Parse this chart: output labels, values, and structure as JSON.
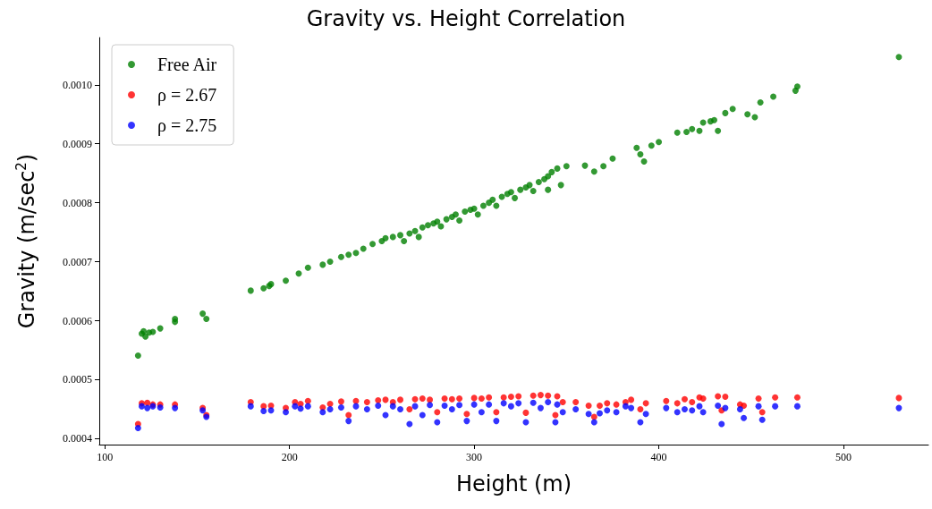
{
  "chart_data": {
    "type": "scatter",
    "title": "Gravity vs. Height Correlation",
    "xlabel": "Height (m)",
    "ylabel": "Gravity (m/sec$^{2}$)",
    "xlim": [
      97,
      546
    ],
    "xticks": [
      100,
      200,
      300,
      400,
      500
    ],
    "ylim": [
      0.00039,
      0.00108
    ],
    "yticks": [
      {
        "value": 0.0004,
        "label": "0.0004"
      },
      {
        "value": 0.0005,
        "label": "0.0005"
      },
      {
        "value": 0.0006,
        "label": "0.0006"
      },
      {
        "value": 0.0007,
        "label": "0.0007"
      },
      {
        "value": 0.0008,
        "label": "0.0008"
      },
      {
        "value": 0.0009,
        "label": "0.0009"
      },
      {
        "value": 0.001,
        "label": "0.0010"
      }
    ],
    "grid": false,
    "legend": "top left",
    "marker": "circle",
    "series": [
      {
        "name": "Free Air",
        "color": "#008000",
        "x": [
          118,
          120,
          121,
          122,
          124,
          126,
          130,
          138,
          138,
          153,
          155,
          179,
          186,
          189,
          190,
          198,
          205,
          210,
          218,
          222,
          228,
          232,
          236,
          240,
          245,
          250,
          252,
          256,
          260,
          262,
          265,
          268,
          270,
          272,
          275,
          278,
          280,
          282,
          285,
          288,
          290,
          292,
          295,
          298,
          300,
          302,
          305,
          308,
          310,
          312,
          315,
          318,
          320,
          322,
          325,
          328,
          330,
          332,
          335,
          338,
          340,
          342,
          345,
          340,
          347,
          350,
          360,
          365,
          370,
          375,
          388,
          390,
          392,
          396,
          400,
          410,
          415,
          418,
          422,
          424,
          428,
          430,
          432,
          436,
          440,
          448,
          452,
          455,
          462,
          474,
          475,
          530
        ],
        "values": [
          0.000541,
          0.000578,
          0.000582,
          0.000573,
          0.00058,
          0.000581,
          0.000587,
          0.000598,
          0.000603,
          0.000612,
          0.000603,
          0.000651,
          0.000655,
          0.000659,
          0.000662,
          0.000668,
          0.00068,
          0.00069,
          0.000695,
          0.0007,
          0.000708,
          0.000712,
          0.000715,
          0.000722,
          0.00073,
          0.000735,
          0.00074,
          0.000742,
          0.000745,
          0.000735,
          0.000748,
          0.000752,
          0.000742,
          0.000758,
          0.000762,
          0.000765,
          0.000768,
          0.00076,
          0.000772,
          0.000776,
          0.00078,
          0.00077,
          0.000785,
          0.000788,
          0.00079,
          0.00078,
          0.000795,
          0.0008,
          0.000805,
          0.000795,
          0.00081,
          0.000815,
          0.000818,
          0.000808,
          0.000822,
          0.000826,
          0.00083,
          0.00082,
          0.000835,
          0.00084,
          0.000845,
          0.000852,
          0.000858,
          0.000822,
          0.00083,
          0.000862,
          0.000863,
          0.000853,
          0.000862,
          0.000875,
          0.000893,
          0.000882,
          0.00087,
          0.000897,
          0.000903,
          0.000919,
          0.00092,
          0.000925,
          0.000922,
          0.000936,
          0.000938,
          0.00094,
          0.000922,
          0.000952,
          0.000959,
          0.00095,
          0.000945,
          0.00097,
          0.00098,
          0.00099,
          0.000997,
          0.001047
        ]
      },
      {
        "name": "ρ = 2.67",
        "color": "#ff0000",
        "x": [
          118,
          120,
          123,
          126,
          130,
          138,
          153,
          155,
          179,
          186,
          190,
          198,
          203,
          206,
          210,
          218,
          222,
          228,
          232,
          236,
          242,
          248,
          252,
          256,
          260,
          265,
          268,
          272,
          276,
          280,
          284,
          288,
          292,
          296,
          300,
          304,
          308,
          312,
          316,
          320,
          324,
          328,
          332,
          336,
          340,
          344,
          345,
          348,
          355,
          362,
          365,
          368,
          372,
          377,
          382,
          385,
          390,
          393,
          404,
          410,
          414,
          418,
          422,
          424,
          432,
          434,
          436,
          444,
          446,
          454,
          456,
          463,
          475,
          530
        ],
        "values": [
          0.000425,
          0.00046,
          0.000461,
          0.000458,
          0.000458,
          0.000458,
          0.000452,
          0.00044,
          0.000462,
          0.000455,
          0.000456,
          0.000452,
          0.000462,
          0.000459,
          0.000464,
          0.000453,
          0.000459,
          0.000463,
          0.00044,
          0.000464,
          0.000462,
          0.000465,
          0.000466,
          0.000462,
          0.000466,
          0.00045,
          0.000467,
          0.000468,
          0.000466,
          0.000445,
          0.000468,
          0.000467,
          0.000468,
          0.000442,
          0.000469,
          0.000468,
          0.00047,
          0.000445,
          0.00047,
          0.000471,
          0.000472,
          0.000444,
          0.000473,
          0.000474,
          0.000473,
          0.00044,
          0.000472,
          0.000462,
          0.000462,
          0.000456,
          0.000437,
          0.000456,
          0.00046,
          0.000458,
          0.000462,
          0.000466,
          0.00045,
          0.00046,
          0.000464,
          0.00046,
          0.000467,
          0.000462,
          0.00047,
          0.000468,
          0.000472,
          0.000448,
          0.000471,
          0.000458,
          0.000456,
          0.000468,
          0.000445,
          0.00047,
          0.00047,
          0.000469
        ]
      },
      {
        "name": "ρ = 2.75",
        "color": "#0000ff",
        "x": [
          118,
          120,
          123,
          126,
          130,
          138,
          153,
          155,
          179,
          186,
          190,
          198,
          203,
          206,
          210,
          218,
          222,
          228,
          232,
          236,
          242,
          248,
          252,
          256,
          260,
          265,
          268,
          272,
          276,
          280,
          284,
          288,
          292,
          296,
          300,
          304,
          308,
          312,
          316,
          320,
          324,
          328,
          332,
          336,
          340,
          344,
          345,
          348,
          355,
          362,
          365,
          368,
          372,
          377,
          382,
          385,
          390,
          393,
          404,
          410,
          414,
          418,
          422,
          424,
          432,
          434,
          436,
          444,
          446,
          454,
          456,
          463,
          475,
          530
        ],
        "values": [
          0.000418,
          0.000455,
          0.000452,
          0.000455,
          0.000453,
          0.000452,
          0.000448,
          0.000437,
          0.000455,
          0.000447,
          0.000448,
          0.000445,
          0.000455,
          0.000451,
          0.000455,
          0.000445,
          0.00045,
          0.000453,
          0.00043,
          0.000455,
          0.00045,
          0.000456,
          0.00044,
          0.000455,
          0.00045,
          0.000425,
          0.000455,
          0.00044,
          0.000457,
          0.000428,
          0.000456,
          0.00045,
          0.000457,
          0.00043,
          0.000458,
          0.000445,
          0.000458,
          0.00043,
          0.00046,
          0.000455,
          0.00046,
          0.000428,
          0.000461,
          0.000452,
          0.000462,
          0.000428,
          0.000458,
          0.000445,
          0.00045,
          0.000442,
          0.000428,
          0.000443,
          0.000448,
          0.000445,
          0.000455,
          0.000452,
          0.000428,
          0.000442,
          0.000452,
          0.000445,
          0.00045,
          0.000448,
          0.000455,
          0.000445,
          0.000456,
          0.000425,
          0.000452,
          0.00045,
          0.000435,
          0.000455,
          0.000432,
          0.000455,
          0.000455,
          0.000452
        ]
      }
    ]
  }
}
